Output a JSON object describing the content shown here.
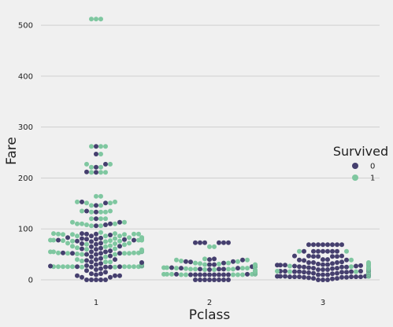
{
  "chart_data": {
    "type": "scatter",
    "subtype": "swarm",
    "title": "",
    "xlabel": "Pclass",
    "ylabel": "Fare",
    "categories": [
      "1",
      "2",
      "3"
    ],
    "y_ticks": [
      0,
      100,
      200,
      300,
      400,
      500
    ],
    "ylim": [
      -20,
      540
    ],
    "grid": "horizontal",
    "legend": {
      "title": "Survived",
      "placement": "right",
      "entries": [
        {
          "label": "0",
          "color": "#453f6e"
        },
        {
          "label": "1",
          "color": "#7fc7a0"
        }
      ]
    },
    "series": [
      {
        "name": "0",
        "color": "#453f6e",
        "points_by_category": [
          [
            0,
            0,
            0,
            0,
            0,
            5,
            5,
            8,
            8,
            8,
            10,
            12,
            12,
            15,
            18,
            20,
            22,
            25,
            25,
            25,
            26,
            26,
            27,
            27,
            28,
            28,
            28,
            29,
            30,
            30,
            30,
            31,
            31,
            32,
            34,
            35,
            38,
            40,
            40,
            42,
            45,
            47,
            50,
            50,
            52,
            52,
            52,
            53,
            55,
            55,
            56,
            57,
            60,
            61,
            62,
            65,
            66,
            70,
            71,
            72,
            75,
            76,
            78,
            78,
            79,
            80,
            80,
            81,
            82,
            83,
            86,
            88,
            90,
            90,
            91,
            106,
            108,
            110,
            113,
            120,
            133,
            135,
            146,
            151,
            153,
            211,
            212,
            221,
            227,
            247,
            262
          ],
          [
            0,
            0,
            0,
            0,
            0,
            0,
            0,
            0,
            10,
            10,
            10,
            10,
            10,
            10,
            10,
            10,
            10,
            11,
            11,
            12,
            12,
            12,
            13,
            13,
            13,
            13,
            13,
            13,
            13,
            13,
            13,
            13,
            13,
            13,
            14,
            14,
            14,
            15,
            15,
            15,
            15,
            15,
            15,
            16,
            18,
            20,
            21,
            21,
            21,
            23,
            23,
            24,
            26,
            26,
            26,
            26,
            26,
            26,
            26,
            26,
            26,
            26,
            26,
            27,
            27,
            29,
            30,
            30,
            33,
            35,
            36,
            36,
            39,
            40,
            41,
            73,
            73,
            73,
            73,
            73,
            73
          ],
          [
            0,
            0,
            0,
            2,
            3,
            3,
            4,
            5,
            5,
            5,
            6,
            6,
            6,
            6,
            6,
            6,
            7,
            7,
            7,
            7,
            7,
            7,
            7,
            7,
            7,
            7,
            7,
            7,
            7,
            7,
            7,
            7,
            7,
            7,
            7,
            7,
            7,
            7,
            7,
            7,
            7,
            7,
            7,
            7,
            7,
            7,
            7,
            7,
            7,
            7,
            7,
            7,
            8,
            8,
            8,
            8,
            8,
            8,
            8,
            8,
            8,
            8,
            8,
            8,
            8,
            8,
            8,
            8,
            8,
            8,
            8,
            8,
            8,
            8,
            8,
            8,
            8,
            8,
            9,
            9,
            9,
            9,
            9,
            9,
            9,
            9,
            9,
            9,
            9,
            9,
            9,
            9,
            10,
            10,
            10,
            10,
            10,
            10,
            10,
            11,
            11,
            11,
            12,
            12,
            12,
            12,
            13,
            13,
            14,
            14,
            14,
            14,
            14,
            15,
            15,
            15,
            15,
            16,
            16,
            16,
            17,
            17,
            17,
            18,
            18,
            18,
            19,
            19,
            20,
            20,
            20,
            21,
            21,
            21,
            22,
            22,
            23,
            23,
            24,
            24,
            24,
            25,
            25,
            25,
            26,
            27,
            27,
            28,
            29,
            29,
            29,
            30,
            30,
            31,
            31,
            31,
            31,
            31,
            31,
            32,
            34,
            34,
            34,
            35,
            38,
            39,
            39,
            40,
            40,
            46,
            46,
            46,
            46,
            47,
            47,
            47,
            56,
            56,
            56,
            56,
            56,
            56,
            56,
            69,
            69,
            69,
            69,
            69,
            69,
            69,
            69
          ]
        ]
      },
      {
        "name": "1",
        "color": "#7fc7a0",
        "points_by_category": [
          [
            25,
            25,
            26,
            26,
            26,
            26,
            26,
            26,
            26,
            26,
            26,
            27,
            27,
            27,
            27,
            27,
            27,
            28,
            29,
            30,
            30,
            30,
            31,
            32,
            35,
            35,
            37,
            40,
            45,
            50,
            50,
            51,
            52,
            52,
            52,
            53,
            53,
            53,
            55,
            55,
            55,
            56,
            57,
            57,
            57,
            58,
            59,
            60,
            61,
            63,
            65,
            66,
            67,
            69,
            70,
            71,
            72,
            72,
            75,
            76,
            76,
            77,
            77,
            78,
            78,
            78,
            78,
            78,
            79,
            79,
            79,
            80,
            80,
            80,
            80,
            81,
            81,
            81,
            83,
            83,
            83,
            86,
            86,
            86,
            89,
            89,
            89,
            90,
            90,
            90,
            91,
            91,
            93,
            106,
            106,
            108,
            110,
            110,
            110,
            113,
            113,
            120,
            120,
            120,
            133,
            133,
            133,
            135,
            135,
            146,
            146,
            151,
            151,
            153,
            153,
            164,
            164,
            211,
            211,
            211,
            221,
            221,
            227,
            227,
            247,
            262,
            262,
            262,
            512,
            512,
            512
          ],
          [
            10,
            10,
            10,
            10,
            10,
            11,
            11,
            11,
            11,
            11,
            12,
            12,
            12,
            13,
            13,
            13,
            13,
            13,
            13,
            13,
            13,
            13,
            13,
            13,
            13,
            13,
            13,
            13,
            13,
            14,
            14,
            14,
            14,
            15,
            15,
            15,
            15,
            16,
            16,
            16,
            16,
            18,
            18,
            18,
            18,
            19,
            20,
            20,
            21,
            21,
            21,
            21,
            22,
            23,
            23,
            23,
            24,
            24,
            26,
            26,
            26,
            26,
            26,
            26,
            26,
            26,
            26,
            26,
            26,
            27,
            27,
            27,
            28,
            29,
            30,
            30,
            31,
            32,
            33,
            33,
            36,
            37,
            39,
            39,
            41,
            65,
            65
          ],
          [
            7,
            7,
            7,
            7,
            7,
            7,
            7,
            8,
            8,
            8,
            8,
            8,
            8,
            8,
            8,
            8,
            8,
            8,
            9,
            9,
            9,
            9,
            9,
            9,
            10,
            10,
            11,
            11,
            12,
            12,
            13,
            13,
            14,
            15,
            15,
            15,
            16,
            16,
            17,
            18,
            19,
            20,
            20,
            20,
            21,
            22,
            22,
            23,
            23,
            24,
            24,
            25,
            26,
            27,
            29,
            31,
            31,
            31,
            31,
            34,
            39,
            56,
            56
          ]
        ]
      }
    ]
  }
}
